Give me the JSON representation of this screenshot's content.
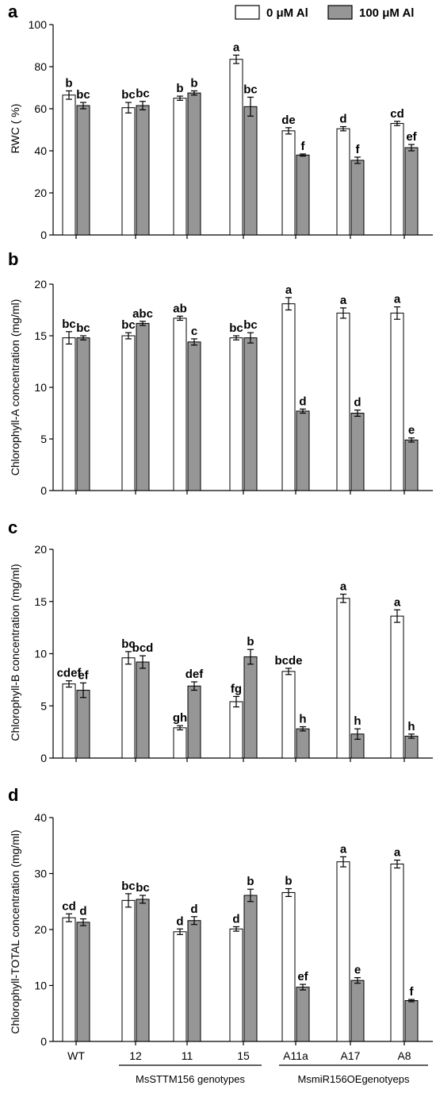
{
  "legend": [
    {
      "label": "0 μM Al",
      "color": "#ffffff"
    },
    {
      "label": "100 μM Al",
      "color": "#969696"
    }
  ],
  "categories": [
    "WT",
    "12",
    "11",
    "15",
    "A11a",
    "A17",
    "A8"
  ],
  "group_labels": [
    "MsSTTM156 genotypes",
    "MsmiR156OEgenotyeps"
  ],
  "chart_data": [
    {
      "panel": "a",
      "type": "bar",
      "ylabel": "RWC ( %)",
      "ylim": [
        0,
        100
      ],
      "yticks": [
        0,
        20,
        40,
        60,
        80,
        100
      ],
      "categories": [
        "WT",
        "12",
        "11",
        "15",
        "A11a",
        "A17",
        "A8"
      ],
      "series": [
        {
          "name": "0 μM Al",
          "values": [
            66.5,
            60.5,
            65,
            83.5,
            49.5,
            50.5,
            53
          ],
          "errors": [
            2,
            2.5,
            1,
            2,
            1.5,
            1,
            1
          ],
          "letters": [
            "b",
            "bc",
            "b",
            "a",
            "de",
            "d",
            "cd"
          ]
        },
        {
          "name": "100 μM Al",
          "values": [
            61.5,
            61.5,
            67.5,
            61,
            38,
            35.5,
            41.5
          ],
          "errors": [
            1.5,
            2,
            1,
            4.5,
            0.5,
            1.5,
            1.5
          ],
          "letters": [
            "bc",
            "bc",
            "b",
            "bc",
            "f",
            "f",
            "ef"
          ]
        }
      ]
    },
    {
      "panel": "b",
      "type": "bar",
      "ylabel": "Chlorophyll-A concentration (mg/ml)",
      "ylim": [
        0,
        20
      ],
      "yticks": [
        0,
        5,
        10,
        15,
        20
      ],
      "categories": [
        "WT",
        "12",
        "11",
        "15",
        "A11a",
        "A17",
        "A8"
      ],
      "series": [
        {
          "name": "0 μM Al",
          "values": [
            14.8,
            15,
            16.7,
            14.8,
            18.1,
            17.2,
            17.2
          ],
          "errors": [
            0.6,
            0.3,
            0.2,
            0.2,
            0.6,
            0.5,
            0.6
          ],
          "letters": [
            "bc",
            "bc",
            "ab",
            "bc",
            "a",
            "a",
            "a"
          ]
        },
        {
          "name": "100 μM Al",
          "values": [
            14.8,
            16.2,
            14.4,
            14.8,
            7.7,
            7.5,
            4.9
          ],
          "errors": [
            0.2,
            0.2,
            0.3,
            0.5,
            0.2,
            0.3,
            0.2
          ],
          "letters": [
            "bc",
            "abc",
            "c",
            "bc",
            "d",
            "d",
            "e"
          ]
        }
      ]
    },
    {
      "panel": "c",
      "type": "bar",
      "ylabel": "Chlorophyll-B concentration (mg/ml)",
      "ylim": [
        0,
        20
      ],
      "yticks": [
        0,
        5,
        10,
        15,
        20
      ],
      "categories": [
        "WT",
        "12",
        "11",
        "15",
        "A11a",
        "A17",
        "A8"
      ],
      "series": [
        {
          "name": "0 μM Al",
          "values": [
            7.1,
            9.6,
            2.9,
            5.4,
            8.3,
            15.3,
            13.6
          ],
          "errors": [
            0.3,
            0.6,
            0.2,
            0.5,
            0.3,
            0.4,
            0.6
          ],
          "letters": [
            "cdef",
            "bc",
            "gh",
            "fg",
            "bcde",
            "a",
            "a"
          ]
        },
        {
          "name": "100 μM Al",
          "values": [
            6.5,
            9.2,
            6.9,
            9.7,
            2.8,
            2.3,
            2.1
          ],
          "errors": [
            0.7,
            0.6,
            0.4,
            0.7,
            0.2,
            0.5,
            0.2
          ],
          "letters": [
            "ef",
            "bcd",
            "def",
            "b",
            "h",
            "h",
            "h"
          ]
        }
      ]
    },
    {
      "panel": "d",
      "type": "bar",
      "ylabel": "Chlorophyll-TOTAL concentration (mg/ml)",
      "ylim": [
        0,
        40
      ],
      "yticks": [
        0,
        10,
        20,
        30,
        40
      ],
      "categories": [
        "WT",
        "12",
        "11",
        "15",
        "A11a",
        "A17",
        "A8"
      ],
      "series": [
        {
          "name": "0 μM Al",
          "values": [
            22.1,
            25.2,
            19.6,
            20.1,
            26.6,
            32.1,
            31.7
          ],
          "errors": [
            0.7,
            1.2,
            0.5,
            0.4,
            0.7,
            0.9,
            0.7
          ],
          "letters": [
            "cd",
            "bc",
            "d",
            "d",
            "b",
            "a",
            "a"
          ]
        },
        {
          "name": "100 μM Al",
          "values": [
            21.3,
            25.4,
            21.6,
            26.1,
            9.7,
            10.9,
            7.3
          ],
          "errors": [
            0.6,
            0.7,
            0.7,
            1.1,
            0.5,
            0.5,
            0.2
          ],
          "letters": [
            "d",
            "bc",
            "d",
            "b",
            "ef",
            "e",
            "f"
          ]
        }
      ]
    }
  ]
}
